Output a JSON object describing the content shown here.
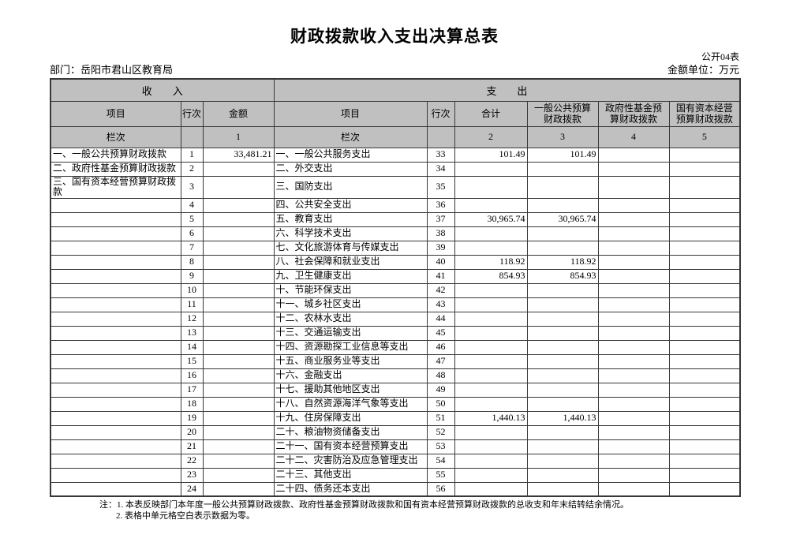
{
  "title": "财政拨款收入支出决算总表",
  "meta": {
    "table_code": "公开04表",
    "department": "部门：岳阳市君山区教育局",
    "unit": "金额单位：万元"
  },
  "table": {
    "group_headers": {
      "income": "收　　入",
      "expense": "支　　出"
    },
    "columns": [
      "项目",
      "行次",
      "金额",
      "项目",
      "行次",
      "合计",
      "一般公共预算\n财政拨款",
      "政府性基金预\n算财政拨款",
      "国有资本经营\n预算财政拨款"
    ],
    "rank_row": [
      "栏次",
      "",
      "1",
      "栏次",
      "",
      "2",
      "3",
      "4",
      "5"
    ],
    "rows": [
      [
        "一、一般公共预算财政拨款",
        "1",
        "33,481.21",
        "一、一般公共服务支出",
        "33",
        "101.49",
        "101.49",
        "",
        ""
      ],
      [
        "二、政府性基金预算财政拨款",
        "2",
        "",
        "二、外交支出",
        "34",
        "",
        "",
        "",
        ""
      ],
      [
        "三、国有资本经营预算财政拨\n款",
        "3",
        "",
        "三、国防支出",
        "35",
        "",
        "",
        "",
        ""
      ],
      [
        "",
        "4",
        "",
        "四、公共安全支出",
        "36",
        "",
        "",
        "",
        ""
      ],
      [
        "",
        "5",
        "",
        "五、教育支出",
        "37",
        "30,965.74",
        "30,965.74",
        "",
        ""
      ],
      [
        "",
        "6",
        "",
        "六、科学技术支出",
        "38",
        "",
        "",
        "",
        ""
      ],
      [
        "",
        "7",
        "",
        "七、文化旅游体育与传媒支出",
        "39",
        "",
        "",
        "",
        ""
      ],
      [
        "",
        "8",
        "",
        "八、社会保障和就业支出",
        "40",
        "118.92",
        "118.92",
        "",
        ""
      ],
      [
        "",
        "9",
        "",
        "九、卫生健康支出",
        "41",
        "854.93",
        "854.93",
        "",
        ""
      ],
      [
        "",
        "10",
        "",
        "十、节能环保支出",
        "42",
        "",
        "",
        "",
        ""
      ],
      [
        "",
        "11",
        "",
        "十一、城乡社区支出",
        "43",
        "",
        "",
        "",
        ""
      ],
      [
        "",
        "12",
        "",
        "十二、农林水支出",
        "44",
        "",
        "",
        "",
        ""
      ],
      [
        "",
        "13",
        "",
        "十三、交通运输支出",
        "45",
        "",
        "",
        "",
        ""
      ],
      [
        "",
        "14",
        "",
        "十四、资源勘探工业信息等支出",
        "46",
        "",
        "",
        "",
        ""
      ],
      [
        "",
        "15",
        "",
        "十五、商业服务业等支出",
        "47",
        "",
        "",
        "",
        ""
      ],
      [
        "",
        "16",
        "",
        "十六、金融支出",
        "48",
        "",
        "",
        "",
        ""
      ],
      [
        "",
        "17",
        "",
        "十七、援助其他地区支出",
        "49",
        "",
        "",
        "",
        ""
      ],
      [
        "",
        "18",
        "",
        "十八、自然资源海洋气象等支出",
        "50",
        "",
        "",
        "",
        ""
      ],
      [
        "",
        "19",
        "",
        "十九、住房保障支出",
        "51",
        "1,440.13",
        "1,440.13",
        "",
        ""
      ],
      [
        "",
        "20",
        "",
        "二十、粮油物资储备支出",
        "52",
        "",
        "",
        "",
        ""
      ],
      [
        "",
        "21",
        "",
        "二十一、国有资本经营预算支出",
        "53",
        "",
        "",
        "",
        ""
      ],
      [
        "",
        "22",
        "",
        "二十二、灾害防治及应急管理支出",
        "54",
        "",
        "",
        "",
        ""
      ],
      [
        "",
        "23",
        "",
        "二十三、其他支出",
        "55",
        "",
        "",
        "",
        ""
      ],
      [
        "",
        "24",
        "",
        "二十四、债务还本支出",
        "56",
        "",
        "",
        "",
        ""
      ]
    ]
  },
  "notes": [
    "注：1. 本表反映部门本年度一般公共预算财政拨款、政府性基金预算财政拨款和国有资本经营预算财政拨款的总收支和年末结转结余情况。",
    "2. 表格中单元格空白表示数据为零。"
  ]
}
